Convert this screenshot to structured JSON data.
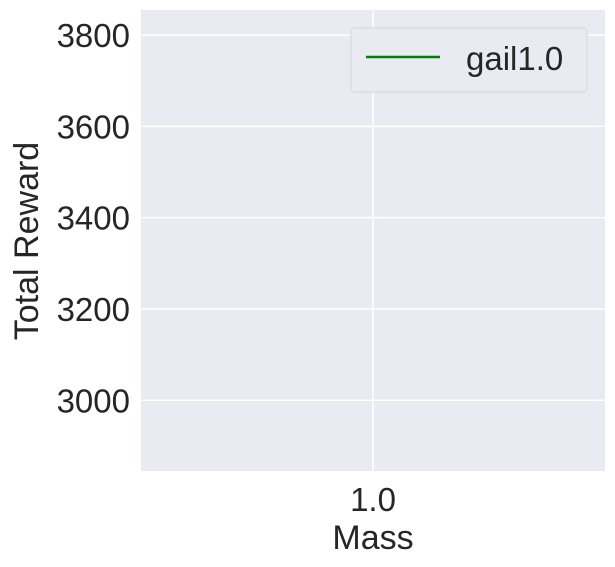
{
  "chart_data": {
    "type": "line",
    "title": "",
    "xlabel": "Mass",
    "ylabel": "Total Reward",
    "x_ticks": [
      {
        "value": 1.0,
        "label": "1.0"
      }
    ],
    "y_ticks": [
      {
        "value": 3000,
        "label": "3000"
      },
      {
        "value": 3200,
        "label": "3200"
      },
      {
        "value": 3400,
        "label": "3400"
      },
      {
        "value": 3600,
        "label": "3600"
      },
      {
        "value": 3800,
        "label": "3800"
      }
    ],
    "xlim": [
      0.5,
      1.5
    ],
    "ylim": [
      2845,
      3855
    ],
    "grid": true,
    "legend_position": "top-right",
    "series": [
      {
        "name": "gail1.0",
        "color": "#008000",
        "x": [],
        "y": []
      }
    ],
    "colors": {
      "plot_background": "#eaeaf2",
      "grid": "#ffffff",
      "text": "#262626"
    }
  }
}
